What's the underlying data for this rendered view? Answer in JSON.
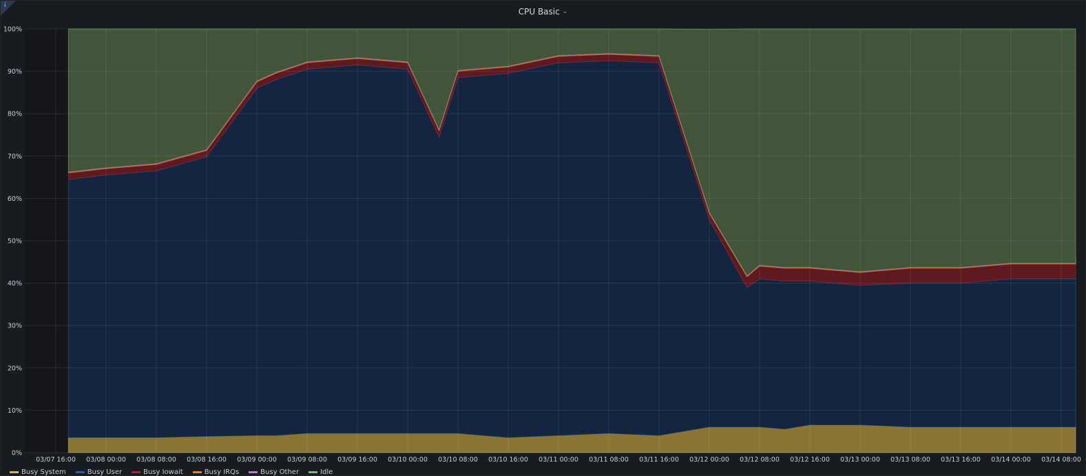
{
  "panel": {
    "title": "CPU Basic",
    "info": "i"
  },
  "chart_data": {
    "type": "area",
    "stacked": true,
    "title": "CPU Basic",
    "ylim": [
      0,
      100
    ],
    "y_ticks": [
      "0%",
      "10%",
      "20%",
      "30%",
      "40%",
      "50%",
      "60%",
      "70%",
      "80%",
      "90%",
      "100%"
    ],
    "x_ticks": [
      "03/07 16:00",
      "03/08 00:00",
      "03/08 08:00",
      "03/08 16:00",
      "03/09 00:00",
      "03/09 08:00",
      "03/09 16:00",
      "03/10 00:00",
      "03/10 08:00",
      "03/10 16:00",
      "03/11 00:00",
      "03/11 08:00",
      "03/11 16:00",
      "03/12 00:00",
      "03/12 08:00",
      "03/12 16:00",
      "03/13 00:00",
      "03/13 08:00",
      "03/13 16:00",
      "03/14 00:00",
      "03/14 08:00"
    ],
    "grid": true,
    "legend_position": "bottom-left",
    "x_hours_approx": [
      -6,
      0,
      8,
      16,
      24,
      27,
      32,
      40,
      48,
      53,
      56,
      64,
      72,
      80,
      88,
      96,
      102,
      104,
      108,
      112,
      120,
      128,
      136,
      144,
      152,
      160,
      168,
      170
    ],
    "x_label_times_note": "points listed as hours after 03/08 00:00",
    "series": [
      {
        "name": "Busy System",
        "color": "#d8b24a",
        "values": [
          3.5,
          3.5,
          3.5,
          3.8,
          4,
          4,
          4.5,
          4.5,
          4.5,
          4.5,
          4.5,
          3.5,
          4,
          4.5,
          4,
          6,
          6,
          6,
          5.5,
          6.5,
          6.5,
          6,
          6,
          6,
          6,
          6,
          6.5,
          6.5
        ]
      },
      {
        "name": "Busy User",
        "color": "#1f60c4",
        "values": [
          61,
          62,
          63,
          66,
          82,
          84,
          86,
          87,
          86,
          70,
          84,
          86,
          88,
          88,
          88,
          49,
          33,
          35,
          35,
          34,
          33,
          34,
          34,
          35,
          35,
          35,
          35,
          36
        ]
      },
      {
        "name": "Busy Iowait",
        "color": "#c4162a",
        "values": [
          1.5,
          1.5,
          1.5,
          1.5,
          1.5,
          1.5,
          1.5,
          1.5,
          1.5,
          1.5,
          1.5,
          1.5,
          1.5,
          1.5,
          1.5,
          1.5,
          2.5,
          3,
          3,
          3,
          3,
          3.5,
          3.5,
          3.5,
          3.5,
          3.5,
          3.5,
          3.5
        ]
      },
      {
        "name": "Busy IRQs",
        "color": "#ff780a",
        "values": [
          0.1,
          0.1,
          0.1,
          0.1,
          0.1,
          0.1,
          0.1,
          0.1,
          0.1,
          0.1,
          0.1,
          0.1,
          0.1,
          0.1,
          0.1,
          0.1,
          0.1,
          0.1,
          0.1,
          0.1,
          0.1,
          0.1,
          0.1,
          0.1,
          0.1,
          0.1,
          0.1,
          0.1
        ]
      },
      {
        "name": "Busy Other",
        "color": "#b877d9",
        "values": [
          0.1,
          0.1,
          0.1,
          0.1,
          0.1,
          0.1,
          0.1,
          0.1,
          0.1,
          0.1,
          0.1,
          0.1,
          0.1,
          0.1,
          0.1,
          0.1,
          0.1,
          0.1,
          0.1,
          0.1,
          0.1,
          0.1,
          0.1,
          0.1,
          0.1,
          0.1,
          0.1,
          0.1
        ]
      },
      {
        "name": "Idle",
        "color": "#73bf69",
        "values": [
          33.8,
          32.8,
          31.8,
          28.5,
          12.3,
          10.3,
          7.8,
          6.8,
          7.8,
          23.8,
          9.8,
          8.8,
          6.3,
          5.8,
          6.3,
          43.2,
          58.3,
          55.8,
          56.3,
          56.3,
          57.3,
          56.3,
          56.3,
          55.3,
          55.3,
          55.3,
          54.8,
          53.8
        ]
      }
    ]
  },
  "legend": [
    {
      "label": "Busy System",
      "color": "#d8b24a"
    },
    {
      "label": "Busy User",
      "color": "#1f60c4"
    },
    {
      "label": "Busy Iowait",
      "color": "#c4162a"
    },
    {
      "label": "Busy IRQs",
      "color": "#ff780a"
    },
    {
      "label": "Busy Other",
      "color": "#b877d9"
    },
    {
      "label": "Idle",
      "color": "#73bf69"
    }
  ]
}
